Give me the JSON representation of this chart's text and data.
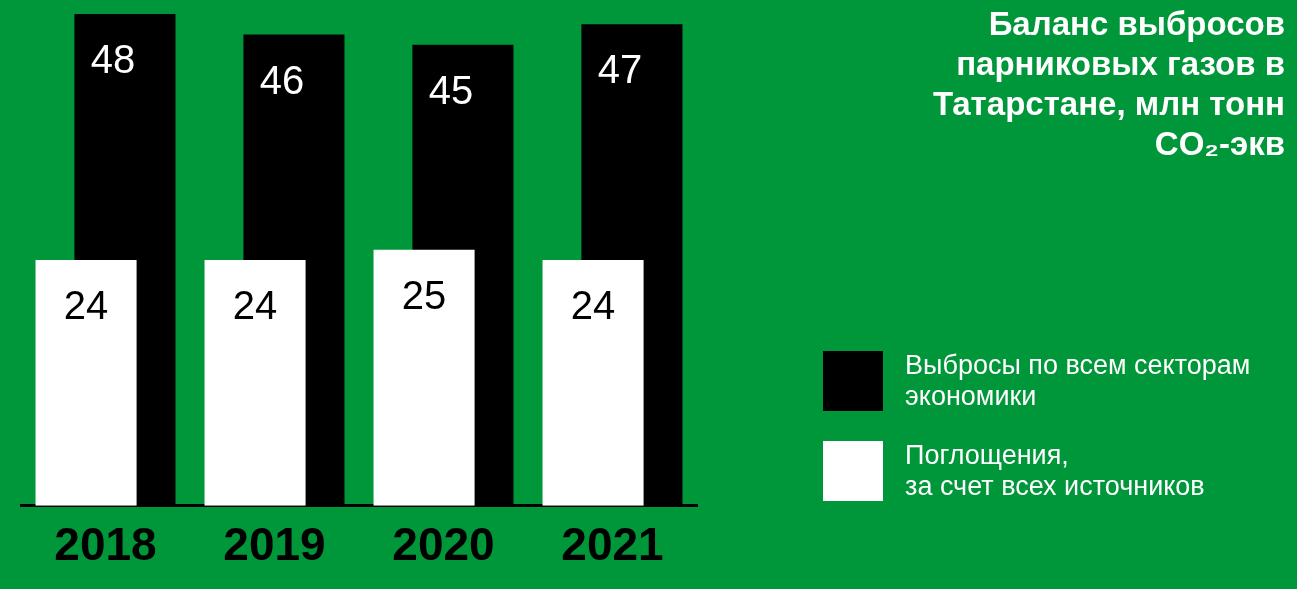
{
  "chart_data": {
    "type": "bar",
    "title": "Баланс выбросов парниковых газов в Татарстане, млн тонн CO₂-экв",
    "categories": [
      "2018",
      "2019",
      "2020",
      "2021"
    ],
    "series": [
      {
        "name": "Выбросы по всем секторам экономики",
        "color": "#000000",
        "values": [
          48,
          46,
          45,
          47
        ]
      },
      {
        "name": "Поглощения, за счет всех источников",
        "color": "#ffffff",
        "values": [
          24,
          24,
          25,
          24
        ]
      }
    ],
    "ylim": [
      0,
      48
    ],
    "data_labels": true,
    "legend": "right",
    "grid": false,
    "tick_labels": "x"
  }
}
